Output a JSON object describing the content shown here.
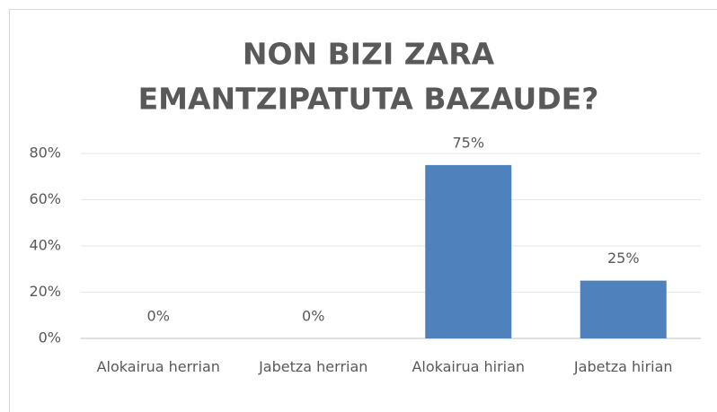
{
  "chart_data": {
    "type": "bar",
    "title": [
      "NON BIZI ZARA",
      "EMANTZIPATUTA BAZAUDE?"
    ],
    "categories": [
      "Alokairua herrian",
      "Jabetza herrian",
      "Alokairua hirian",
      "Jabetza hirian"
    ],
    "values": [
      0,
      0,
      75,
      25
    ],
    "value_labels": [
      "0%",
      "0%",
      "75%",
      "25%"
    ],
    "color": "#4f81bd",
    "ylim": [
      0,
      80
    ],
    "yticks": [
      {
        "value": 0,
        "label": "0%"
      },
      {
        "value": 20,
        "label": "20%"
      },
      {
        "value": 40,
        "label": "40%"
      },
      {
        "value": 60,
        "label": "60%"
      },
      {
        "value": 80,
        "label": "80%"
      }
    ],
    "grid": true
  }
}
